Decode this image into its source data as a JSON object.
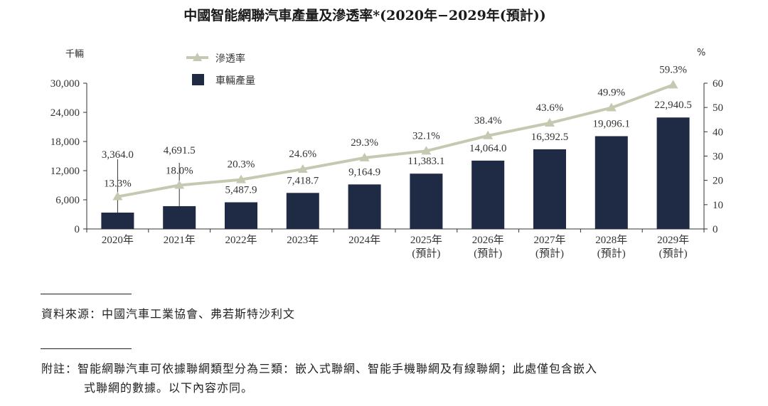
{
  "chart_data": {
    "type": "bar",
    "title": "中國智能網聯汽車產量及滲透率*(2020年−2029年(預計))",
    "left_unit": "千輛",
    "right_unit": "%",
    "categories": [
      "2020年",
      "2021年",
      "2022年",
      "2023年",
      "2024年",
      "2025年",
      "2026年",
      "2027年",
      "2028年",
      "2029年"
    ],
    "category_sublabels": [
      "",
      "",
      "",
      "",
      "",
      "(預計)",
      "(預計)",
      "(預計)",
      "(預計)",
      "(預計)"
    ],
    "series": [
      {
        "name": "車輛產量",
        "type": "bar",
        "axis": "left",
        "color": "#1f2a44",
        "values": [
          3364.0,
          4691.5,
          5487.9,
          7418.7,
          9164.9,
          11383.1,
          14064.0,
          16392.5,
          19096.1,
          22940.5
        ],
        "labels": [
          "3,364.0",
          "4,691.5",
          "5,487.9",
          "7,418.7",
          "9,164.9",
          "11,383.1",
          "14,064.0",
          "16,392.5",
          "19,096.1",
          "22,940.5"
        ]
      },
      {
        "name": "滲透率",
        "type": "line",
        "axis": "right",
        "color": "#c5c9b2",
        "values": [
          13.3,
          18.0,
          20.3,
          24.6,
          29.3,
          32.1,
          38.4,
          43.6,
          49.9,
          59.3
        ],
        "labels": [
          "13.3%",
          "18.0%",
          "20.3%",
          "24.6%",
          "29.3%",
          "32.1%",
          "38.4%",
          "43.6%",
          "49.9%",
          "59.3%"
        ]
      }
    ],
    "y_left": {
      "ylim": [
        0,
        30000
      ],
      "ticks": [
        "0",
        "6,000",
        "12,000",
        "18,000",
        "24,000",
        "30,000"
      ],
      "tick_values": [
        0,
        6000,
        12000,
        18000,
        24000,
        30000
      ]
    },
    "y_right": {
      "ylim": [
        0,
        60
      ],
      "ticks": [
        "0",
        "10",
        "20",
        "30",
        "40",
        "50",
        "60"
      ],
      "tick_values": [
        0,
        10,
        20,
        30,
        40,
        50,
        60
      ]
    },
    "legend": [
      "滲透率",
      "車輛產量"
    ],
    "legend_position": "top-left"
  },
  "notes": {
    "source": "資料來源：中國汽車工業協會、弗若斯特沙利文",
    "footnote_label": "附註：",
    "footnote_line1": "智能網聯汽車可依據聯網類型分為三類：嵌入式聯網、智能手機聯網及有線聯網；此處僅包含嵌入",
    "footnote_line2": "式聯網的數據。以下內容亦同。"
  }
}
